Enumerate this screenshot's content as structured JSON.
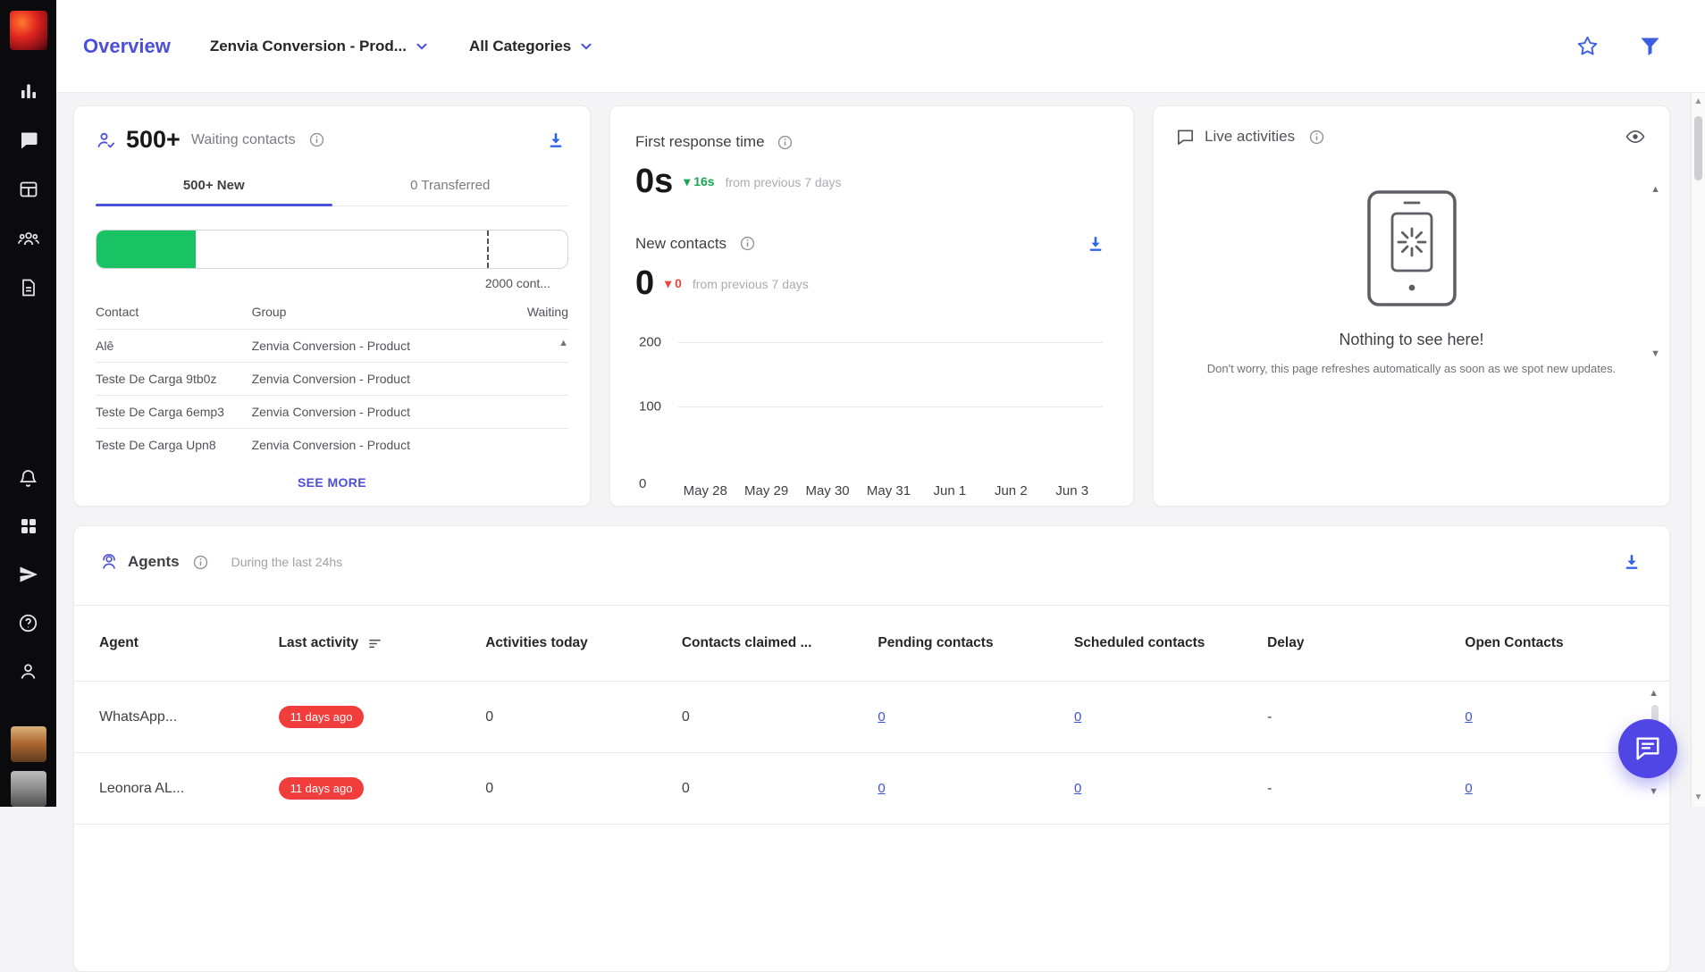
{
  "colors": {
    "accent_indigo": "#4b4fd9",
    "icon_blue": "#3b5fe0",
    "progress_green": "#19c364",
    "delta_green": "#15a752",
    "delta_red": "#e8453c",
    "badge_red": "#f23d3d",
    "sidebar_bg": "#0b0b0e"
  },
  "header": {
    "title": "Overview",
    "account_dropdown": "Zenvia Conversion - Prod...",
    "categories_dropdown": "All Categories"
  },
  "waiting_contacts": {
    "count": "500+",
    "label": "Waiting contacts",
    "tabs": [
      {
        "label": "500+ New",
        "active": true
      },
      {
        "label": "0 Transferred",
        "active": false
      }
    ],
    "progress": {
      "percent": 21,
      "marker_percent": 83,
      "limit_label": "2000 cont..."
    },
    "table": {
      "headers": [
        "Contact",
        "Group",
        "Waiting"
      ],
      "rows": [
        {
          "contact": "Alê",
          "group": "Zenvia Conversion - Product",
          "waiting": ""
        },
        {
          "contact": "Teste De Carga 9tb0z",
          "group": "Zenvia Conversion - Product",
          "waiting": ""
        },
        {
          "contact": "Teste De Carga 6emp3",
          "group": "Zenvia Conversion - Product",
          "waiting": ""
        },
        {
          "contact": "Teste De Carga Upn8",
          "group": "Zenvia Conversion - Product",
          "waiting": ""
        }
      ]
    },
    "see_more": "SEE MORE"
  },
  "first_response": {
    "title": "First response time",
    "value": "0s",
    "delta": "16s",
    "delta_note": "from previous 7 days",
    "new_contacts": {
      "title": "New contacts",
      "value": "0",
      "delta": "0",
      "delta_note": "from previous 7 days"
    }
  },
  "chart_data": {
    "type": "line",
    "title": "New contacts",
    "x": [
      "May 28",
      "May 29",
      "May 30",
      "May 31",
      "Jun 1",
      "Jun 2",
      "Jun 3"
    ],
    "series": [
      {
        "name": "New contacts",
        "values": [
          0,
          0,
          0,
          0,
          0,
          0,
          0
        ]
      }
    ],
    "yticks": [
      "200",
      "100",
      "0"
    ],
    "ylim": [
      0,
      200
    ],
    "grid": true,
    "legend": false
  },
  "live_activities": {
    "title": "Live activities",
    "empty_title": "Nothing to see here!",
    "empty_message": "Don't worry, this page refreshes automatically as soon as we spot new updates."
  },
  "agents": {
    "title": "Agents",
    "subtitle": "During the last 24hs",
    "headers": [
      "Agent",
      "Last activity",
      "Activities today",
      "Contacts claimed ...",
      "Pending contacts",
      "Scheduled contacts",
      "Delay",
      "Open Contacts"
    ],
    "rows": [
      {
        "agent": "WhatsApp...",
        "last_activity": "11 days ago",
        "activities_today": "0",
        "contacts_claimed": "0",
        "pending_contacts": "0",
        "scheduled_contacts": "0",
        "delay": "-",
        "open_contacts": "0"
      },
      {
        "agent": "Leonora AL...",
        "last_activity": "11 days ago",
        "activities_today": "0",
        "contacts_claimed": "0",
        "pending_contacts": "0",
        "scheduled_contacts": "0",
        "delay": "-",
        "open_contacts": "0"
      }
    ]
  }
}
